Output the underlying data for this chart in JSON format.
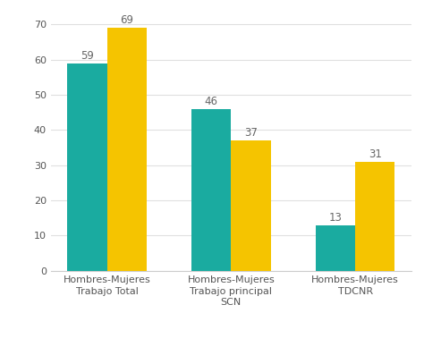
{
  "categories": [
    "Hombres-Mujeres\nTrabajo Total",
    "Hombres-Mujeres\nTrabajo principal\nSCN",
    "Hombres-Mujeres\nTDCNR"
  ],
  "hombres_values": [
    59,
    46,
    13
  ],
  "mujeres_values": [
    69,
    37,
    31
  ],
  "hombres_color": "#1aaba0",
  "mujeres_color": "#f5c400",
  "ylim": [
    0,
    73
  ],
  "yticks": [
    0,
    10,
    20,
    30,
    40,
    50,
    60,
    70
  ],
  "bar_width": 0.32,
  "tick_label_fontsize": 8.0,
  "value_fontsize": 8.5,
  "value_color": "#666666",
  "background_color": "#ffffff",
  "grid_color": "#e0e0e0",
  "spine_color": "#cccccc"
}
